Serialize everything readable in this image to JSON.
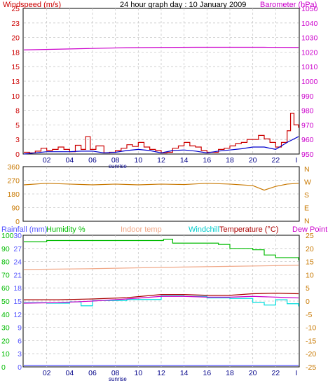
{
  "header": {
    "left_label": "Windspeed (m/s)",
    "title": "24 hour graph day : 10 January 2009",
    "right_label": "Barometer (hPa)"
  },
  "colors": {
    "windspeed": "#cc0000",
    "wind_avg": "#0000cc",
    "barometer": "#cc00cc",
    "direction": "#c87800",
    "rainfall": "#5555ff",
    "humidity": "#00bb00",
    "indoor": "#f0a888",
    "windchill": "#00dddd",
    "temperature": "#aa0000",
    "dewpoint": "#cc00cc",
    "grid": "#c8c8c8",
    "axis_blue": "#000088"
  },
  "x_axis": {
    "ticks": [
      "02",
      "04",
      "06",
      "08",
      "10",
      "12",
      "14",
      "16",
      "18",
      "20",
      "22",
      "I"
    ],
    "sunrise_label": "sunrise"
  },
  "chart_data": [
    {
      "type": "line",
      "name_left": "Windspeed (m/s)",
      "name_right": "Barometer (hPa)",
      "ylim_left": [
        0,
        25
      ],
      "yticks_left": [
        "25",
        "23",
        "20",
        "18",
        "15",
        "13",
        "10",
        "8",
        "5",
        "3",
        "0"
      ],
      "ylim_right": [
        950,
        1050
      ],
      "yticks_right": [
        "1050",
        "1040",
        "1030",
        "1020",
        "1010",
        "1000",
        "990",
        "980",
        "970",
        "960",
        "950"
      ],
      "x_hours": [
        0,
        24
      ],
      "barometer": [
        [
          0,
          1021.5
        ],
        [
          3,
          1022.0
        ],
        [
          6,
          1022.5
        ],
        [
          9,
          1023.0
        ],
        [
          12,
          1023.2
        ],
        [
          15,
          1023.3
        ],
        [
          18,
          1023.3
        ],
        [
          21,
          1023.3
        ],
        [
          24,
          1023.2
        ]
      ],
      "wind_gust": [
        [
          0,
          0.3
        ],
        [
          0.5,
          0.2
        ],
        [
          1,
          0.5
        ],
        [
          1.5,
          1.0
        ],
        [
          2,
          0.6
        ],
        [
          2.5,
          0.8
        ],
        [
          3,
          1.2
        ],
        [
          3.5,
          0.8
        ],
        [
          4,
          0.4
        ],
        [
          4.5,
          1.5
        ],
        [
          5,
          0.8
        ],
        [
          5.4,
          3.0
        ],
        [
          5.8,
          0.8
        ],
        [
          6.3,
          1.4
        ],
        [
          7,
          0.2
        ],
        [
          7.5,
          0.3
        ],
        [
          8,
          0.6
        ],
        [
          8.5,
          1.0
        ],
        [
          9,
          1.6
        ],
        [
          9.5,
          1.3
        ],
        [
          10,
          2.0
        ],
        [
          10.5,
          1.2
        ],
        [
          11,
          0.8
        ],
        [
          11.5,
          0.6
        ],
        [
          12,
          0.2
        ],
        [
          12.5,
          0.3
        ],
        [
          13,
          1.0
        ],
        [
          13.5,
          1.4
        ],
        [
          14,
          2.0
        ],
        [
          14.5,
          1.4
        ],
        [
          15,
          1.2
        ],
        [
          15.5,
          0.6
        ],
        [
          16,
          0.3
        ],
        [
          16.5,
          0.3
        ],
        [
          17,
          0.8
        ],
        [
          17.5,
          1.0
        ],
        [
          18,
          1.4
        ],
        [
          18.5,
          1.8
        ],
        [
          19,
          2.0
        ],
        [
          19.5,
          2.5
        ],
        [
          20,
          2.5
        ],
        [
          20.5,
          3.2
        ],
        [
          21,
          2.6
        ],
        [
          21.5,
          2.0
        ],
        [
          22,
          1.2
        ],
        [
          22.5,
          2.0
        ],
        [
          23,
          4.0
        ],
        [
          23.3,
          7.0
        ],
        [
          23.6,
          5.0
        ],
        [
          24,
          4.5
        ]
      ],
      "wind_avg": [
        [
          0,
          0.0
        ],
        [
          1,
          0.2
        ],
        [
          2,
          0.4
        ],
        [
          3,
          0.4
        ],
        [
          4,
          0.4
        ],
        [
          5,
          0.5
        ],
        [
          6,
          0.5
        ],
        [
          7,
          0.2
        ],
        [
          8,
          0.3
        ],
        [
          9,
          0.6
        ],
        [
          10,
          0.8
        ],
        [
          11,
          0.6
        ],
        [
          12,
          0.2
        ],
        [
          13,
          0.6
        ],
        [
          14,
          0.7
        ],
        [
          15,
          0.5
        ],
        [
          16,
          0.2
        ],
        [
          17,
          0.5
        ],
        [
          18,
          0.7
        ],
        [
          19,
          0.9
        ],
        [
          20,
          1.2
        ],
        [
          21,
          1.2
        ],
        [
          22,
          0.8
        ],
        [
          23,
          2.0
        ],
        [
          24,
          3.0
        ]
      ]
    },
    {
      "type": "line",
      "name": "Wind direction",
      "ylim": [
        0,
        360
      ],
      "yticks": [
        "360",
        "270",
        "180",
        "90",
        "0"
      ],
      "compass": [
        "N",
        "W",
        "S",
        "E",
        "N"
      ],
      "direction": [
        [
          0,
          240
        ],
        [
          2,
          250
        ],
        [
          4,
          245
        ],
        [
          6,
          240
        ],
        [
          8,
          245
        ],
        [
          10,
          240
        ],
        [
          12,
          245
        ],
        [
          14,
          242
        ],
        [
          16,
          250
        ],
        [
          18,
          245
        ],
        [
          20,
          235
        ],
        [
          21,
          205
        ],
        [
          22,
          230
        ],
        [
          23,
          245
        ],
        [
          24,
          250
        ]
      ]
    },
    {
      "type": "line",
      "header": {
        "rainfall_label": "Rainfall (mm)",
        "humidity_label": "Humidity %",
        "indoor_label": "Indoor temp",
        "windchill_label": "Windchill",
        "temperature_label": "Temperature (°C)",
        "dewpoint_label": "Dew Point"
      },
      "yticks_humidity": [
        "100",
        "90",
        "80",
        "70",
        "60",
        "50",
        "40",
        "30",
        "20",
        "10",
        "0"
      ],
      "yticks_rain": [
        "30",
        "27",
        "24",
        "21",
        "18",
        "15",
        "12",
        "9",
        "6",
        "3",
        "0"
      ],
      "yticks_temp": [
        "25",
        "20",
        "15",
        "10",
        "5",
        "0",
        "-5",
        "-10",
        "-15",
        "-20",
        "-25"
      ],
      "ylim_temp": [
        -25,
        25
      ],
      "humidity": [
        [
          0,
          95
        ],
        [
          2,
          96
        ],
        [
          11.8,
          96
        ],
        [
          12.2,
          97
        ],
        [
          13,
          94
        ],
        [
          17,
          93
        ],
        [
          18,
          90
        ],
        [
          20,
          89
        ],
        [
          21,
          85
        ],
        [
          22,
          83
        ],
        [
          23,
          83
        ],
        [
          24,
          81
        ]
      ],
      "indoor_temp": [
        [
          0,
          12.0
        ],
        [
          6,
          12.3
        ],
        [
          12,
          12.8
        ],
        [
          18,
          13.2
        ],
        [
          24,
          13.6
        ]
      ],
      "temperature": [
        [
          0,
          0.5
        ],
        [
          3,
          0.5
        ],
        [
          6,
          0.8
        ],
        [
          9,
          1.3
        ],
        [
          12,
          2.5
        ],
        [
          14,
          2.5
        ],
        [
          16,
          2.2
        ],
        [
          18,
          2.2
        ],
        [
          20,
          2.8
        ],
        [
          22,
          3.0
        ],
        [
          24,
          2.8
        ]
      ],
      "dewpoint": [
        [
          0,
          -0.8
        ],
        [
          3,
          -0.6
        ],
        [
          6,
          0.0
        ],
        [
          9,
          0.8
        ],
        [
          12,
          1.8
        ],
        [
          14,
          1.8
        ],
        [
          16,
          1.5
        ],
        [
          18,
          1.5
        ],
        [
          20,
          1.8
        ],
        [
          22,
          1.5
        ],
        [
          24,
          1.2
        ]
      ],
      "windchill": [
        [
          0,
          -0.6
        ],
        [
          2,
          -0.8
        ],
        [
          4,
          -0.3
        ],
        [
          5,
          -1.8
        ],
        [
          6,
          0.2
        ],
        [
          9,
          0.6
        ],
        [
          12,
          2.0
        ],
        [
          14,
          1.8
        ],
        [
          16,
          1.2
        ],
        [
          18,
          1.0
        ],
        [
          20,
          -0.5
        ],
        [
          21,
          -1.5
        ],
        [
          22,
          0.5
        ],
        [
          23,
          -1.0
        ],
        [
          24,
          -2.0
        ]
      ],
      "rainfall": [
        [
          0,
          0
        ],
        [
          24,
          0
        ]
      ]
    }
  ]
}
